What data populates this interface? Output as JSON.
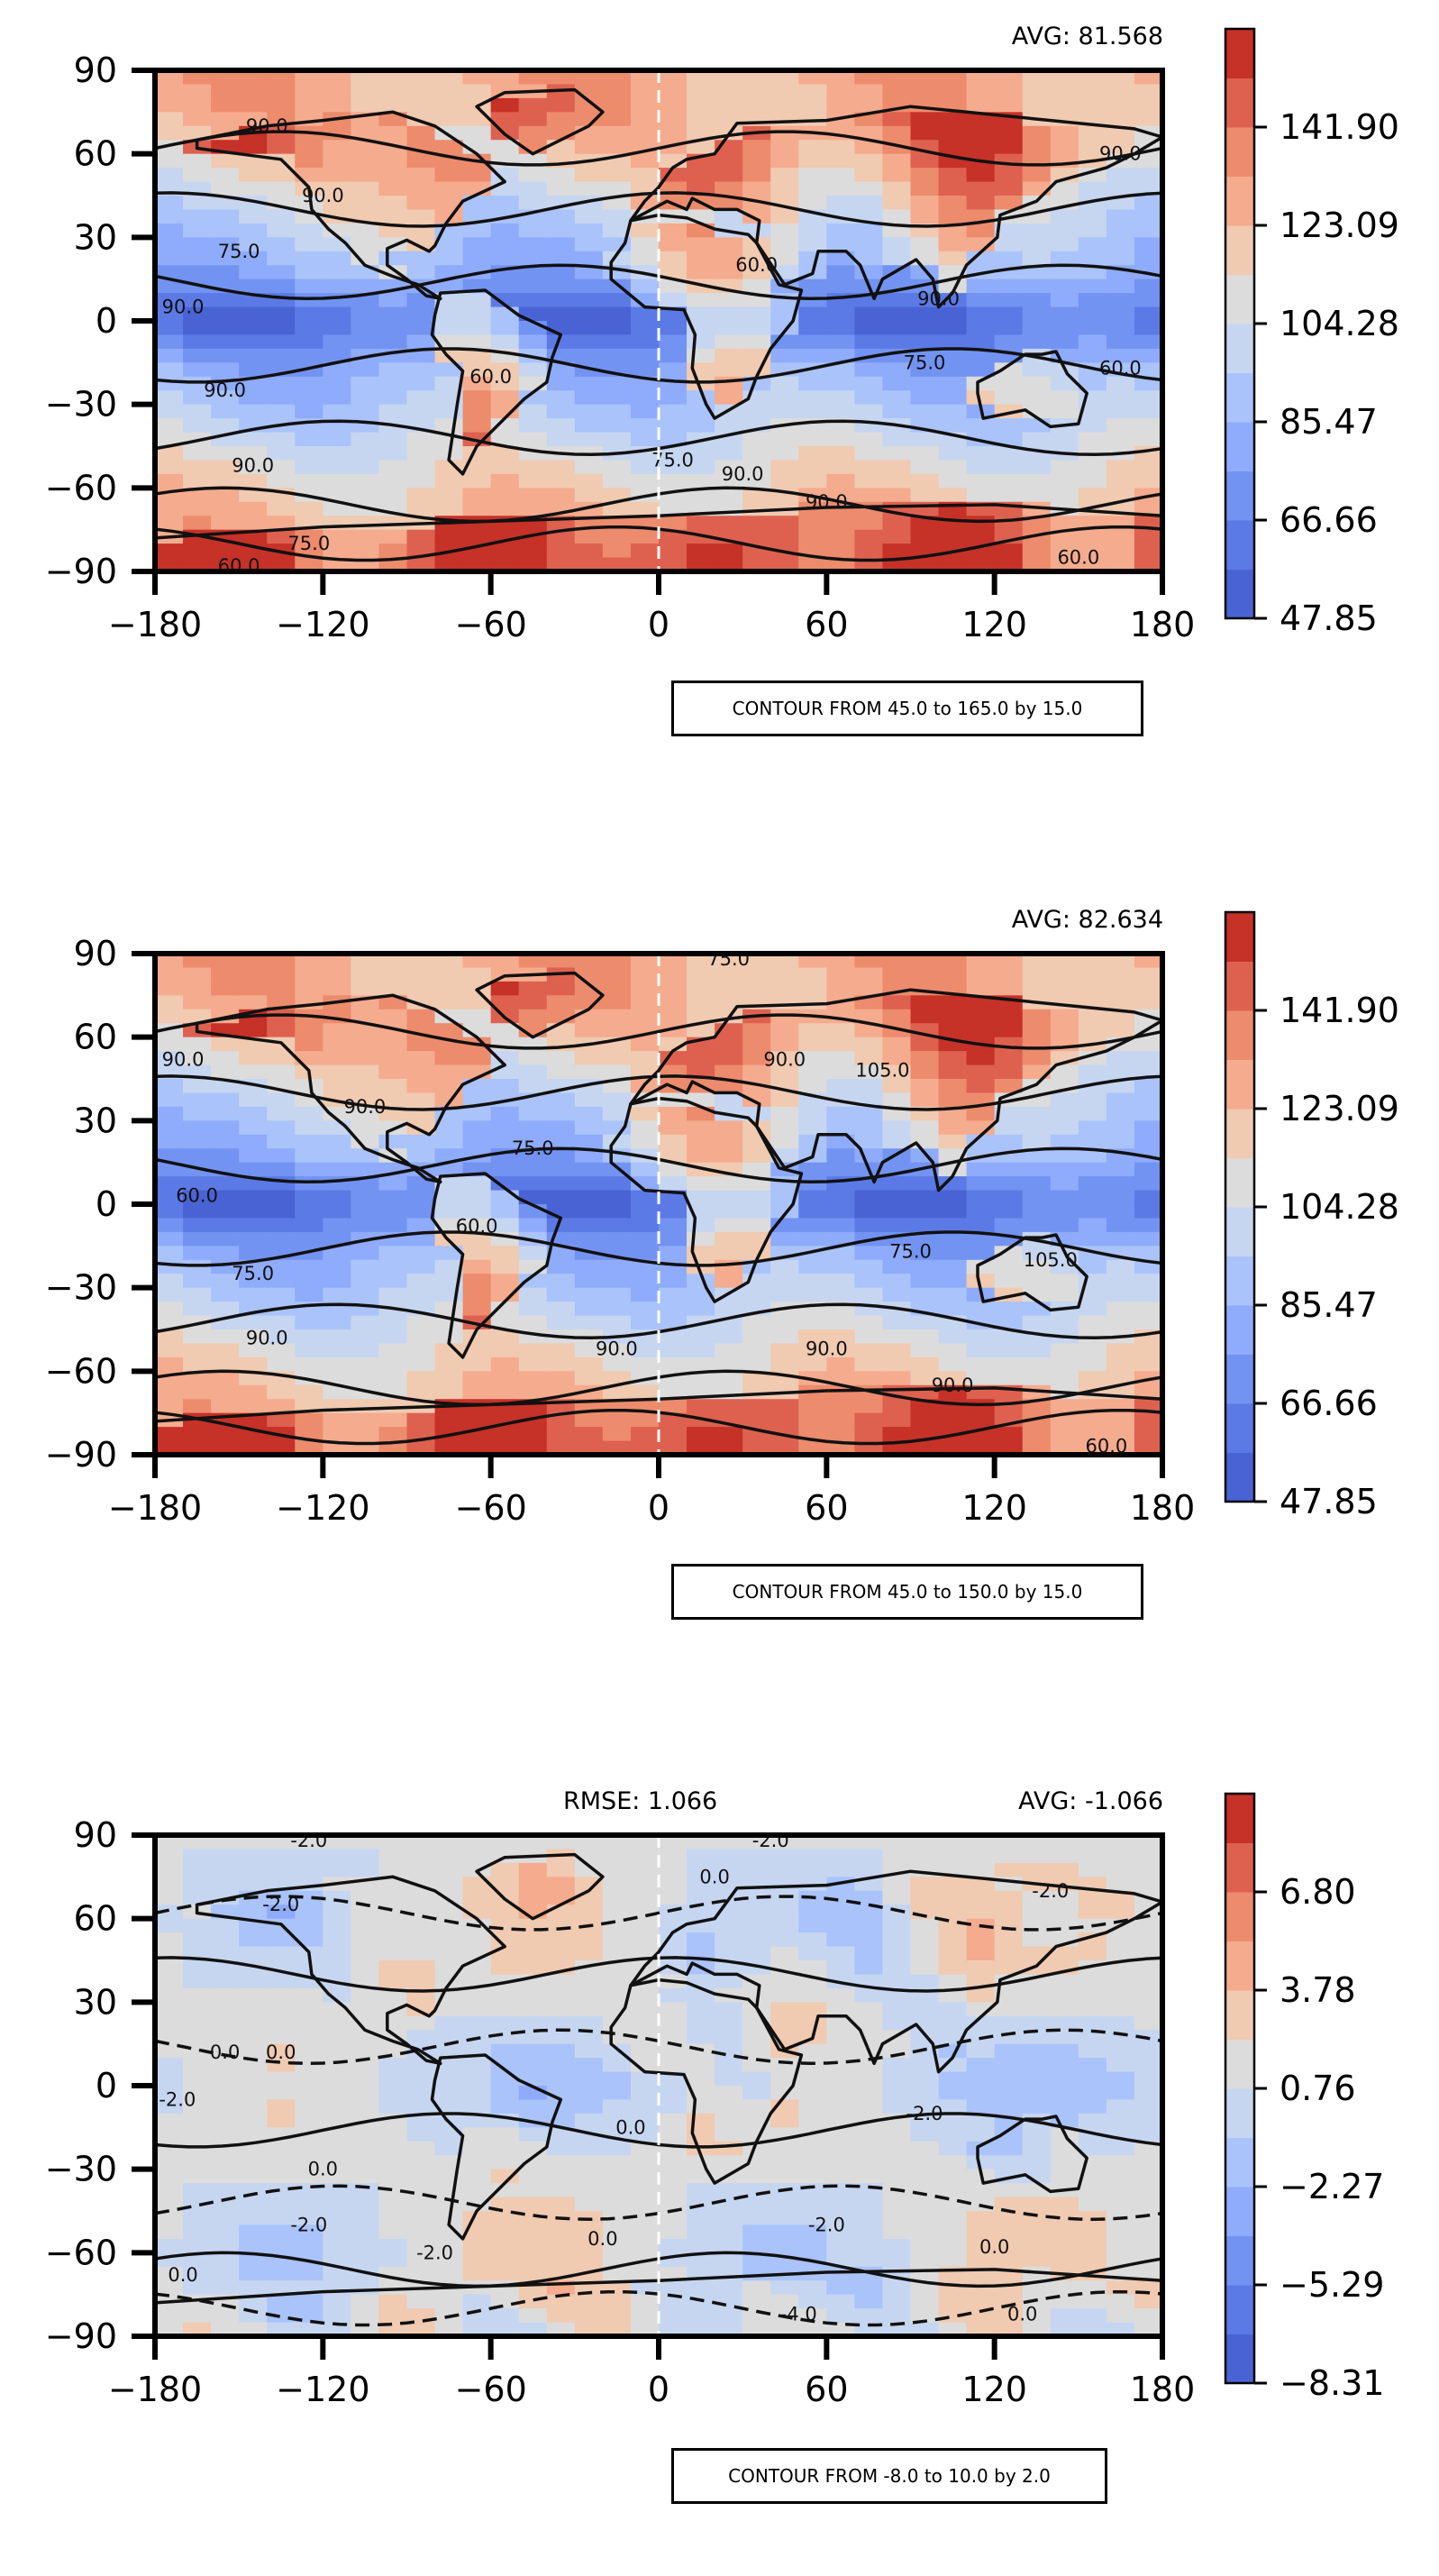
{
  "figure": {
    "panels": [
      {
        "stats": {
          "rmse": "",
          "avg": "AVG: 81.568"
        },
        "contour_note": "CONTOUR FROM 45.0 to 165.0 by 15.0"
      },
      {
        "stats": {
          "rmse": "",
          "avg": "AVG: 82.634"
        },
        "contour_note": "CONTOUR FROM 45.0 to 150.0 by 15.0"
      },
      {
        "stats": {
          "rmse": "RMSE: 1.066",
          "avg": "AVG: -1.066"
        },
        "contour_note": "CONTOUR FROM -8.0 to 10.0 by 2.0"
      }
    ]
  },
  "colors": {
    "coolwarm": [
      "#4a63d4",
      "#5c7ae6",
      "#7393f2",
      "#8fabfb",
      "#aac3fa",
      "#c6d6f1",
      "#dcdcdc",
      "#f0cab1",
      "#f5ab8e",
      "#ed8b6d",
      "#de6150",
      "#c63128"
    ],
    "contour": "#111111"
  },
  "chart_data": [
    {
      "type": "heatmap",
      "title": "",
      "xlabel": "",
      "ylabel": "",
      "x_ticks": [
        "−180",
        "−120",
        "−60",
        "0",
        "60",
        "120",
        "180"
      ],
      "y_ticks": [
        "90",
        "60",
        "30",
        "0",
        "−30",
        "−60",
        "−90"
      ],
      "xlim": [
        -180,
        180
      ],
      "ylim": [
        -90,
        90
      ],
      "colorbar": {
        "ticks": [
          "47.85",
          "66.66",
          "85.47",
          "104.28",
          "123.09",
          "141.90"
        ],
        "range": [
          47.85,
          157.58
        ],
        "levels": 12
      },
      "contour_labels": [
        "90.0",
        "75.0",
        "90.0",
        "90.0",
        "90.0",
        "75.0",
        "60.0",
        "60.0",
        "75.0",
        "90.0",
        "90.0",
        "90.0",
        "90.0",
        "60.0",
        "75.0",
        "60.0",
        "60.0",
        "90.0"
      ],
      "contour_label_positions": [
        [
          -140,
          70
        ],
        [
          -150,
          25
        ],
        [
          -170,
          5
        ],
        [
          -155,
          -25
        ],
        [
          -145,
          -52
        ],
        [
          -125,
          -80
        ],
        [
          -150,
          -88
        ],
        [
          -60,
          -20
        ],
        [
          5,
          -50
        ],
        [
          30,
          -55
        ],
        [
          60,
          -65
        ],
        [
          100,
          8
        ],
        [
          -120,
          45
        ],
        [
          35,
          20
        ],
        [
          95,
          -15
        ],
        [
          150,
          -85
        ],
        [
          165,
          -17
        ],
        [
          165,
          60
        ]
      ]
    },
    {
      "type": "heatmap",
      "title": "",
      "xlabel": "",
      "ylabel": "",
      "x_ticks": [
        "−180",
        "−120",
        "−60",
        "0",
        "60",
        "120",
        "180"
      ],
      "y_ticks": [
        "90",
        "60",
        "30",
        "0",
        "−30",
        "−60",
        "−90"
      ],
      "xlim": [
        -180,
        180
      ],
      "ylim": [
        -90,
        90
      ],
      "colorbar": {
        "ticks": [
          "47.85",
          "66.66",
          "85.47",
          "104.28",
          "123.09",
          "141.90"
        ],
        "range": [
          47.85,
          157.58
        ],
        "levels": 12
      },
      "contour_labels": [
        "75.0",
        "90.0",
        "90.0",
        "60.0",
        "75.0",
        "90.0",
        "75.0",
        "90.0",
        "105.0",
        "60.0",
        "90.0",
        "90.0",
        "90.0",
        "75.0",
        "60.0",
        "105.0"
      ],
      "contour_label_positions": [
        [
          25,
          88
        ],
        [
          -170,
          52
        ],
        [
          -105,
          35
        ],
        [
          -165,
          3
        ],
        [
          -145,
          -25
        ],
        [
          -140,
          -48
        ],
        [
          -45,
          20
        ],
        [
          45,
          52
        ],
        [
          80,
          48
        ],
        [
          -65,
          -8
        ],
        [
          -15,
          -52
        ],
        [
          60,
          -52
        ],
        [
          105,
          -65
        ],
        [
          90,
          -17
        ],
        [
          160,
          -87
        ],
        [
          140,
          -20
        ]
      ]
    },
    {
      "type": "heatmap",
      "title": "",
      "xlabel": "",
      "ylabel": "",
      "x_ticks": [
        "−180",
        "−120",
        "−60",
        "0",
        "60",
        "120",
        "180"
      ],
      "y_ticks": [
        "90",
        "60",
        "30",
        "0",
        "−30",
        "−60",
        "−90"
      ],
      "xlim": [
        -180,
        180
      ],
      "ylim": [
        -90,
        90
      ],
      "colorbar": {
        "ticks": [
          "−8.31",
          "−5.29",
          "−2.27",
          "0.76",
          "3.78",
          "6.80"
        ],
        "range": [
          -8.31,
          9.82
        ],
        "levels": 12
      },
      "contour_labels": [
        "-2.0",
        "-2.0",
        "0.0",
        "0.0",
        "0.0",
        "-2.0",
        "0.0",
        "-2.0",
        "0.0",
        "-2.0",
        "0.0",
        "-2.0",
        "0.0",
        "-4.0",
        "-2.0",
        "-2.0",
        "0.0",
        "0.0",
        "-2.0"
      ],
      "contour_label_positions": [
        [
          -125,
          88
        ],
        [
          -135,
          65
        ],
        [
          -155,
          12
        ],
        [
          -135,
          12
        ],
        [
          -170,
          -68
        ],
        [
          -172,
          -5
        ],
        [
          -120,
          -30
        ],
        [
          -125,
          -50
        ],
        [
          -20,
          -55
        ],
        [
          40,
          88
        ],
        [
          120,
          -58
        ],
        [
          60,
          -50
        ],
        [
          -10,
          -15
        ],
        [
          50,
          -82
        ],
        [
          95,
          -10
        ],
        [
          140,
          70
        ],
        [
          20,
          75
        ],
        [
          130,
          -82
        ],
        [
          -80,
          -60
        ]
      ]
    }
  ]
}
